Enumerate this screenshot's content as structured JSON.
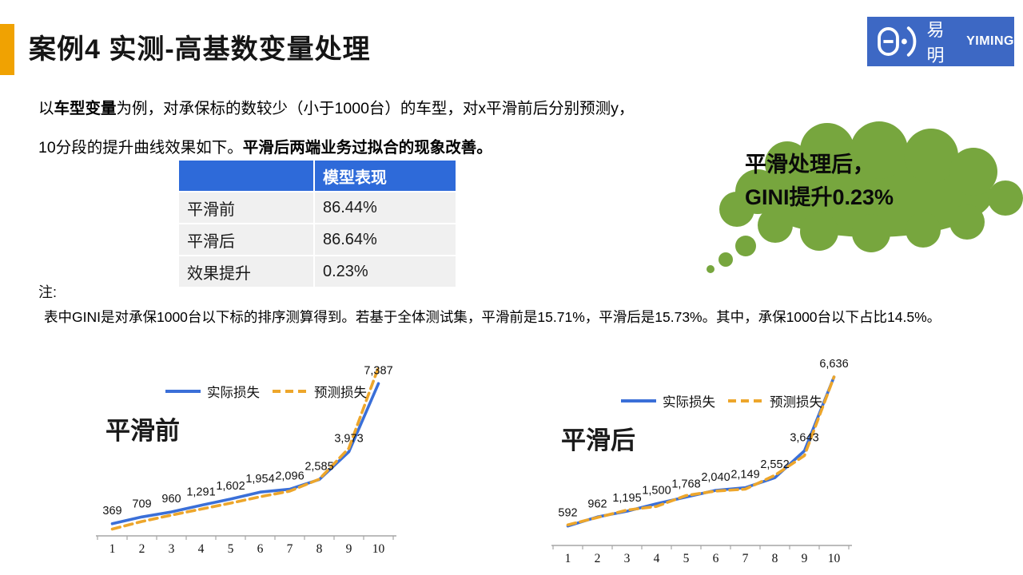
{
  "slide": {
    "title": "案例4 实测-高基数变量处理",
    "logo": {
      "cn": "易明",
      "en": "YIMING",
      "icon": "yiming-face-icon"
    },
    "intro": {
      "pre": "以",
      "bold1": "车型变量",
      "rest1": "为例，对承保标的数较少（小于1000台）的车型，对x平滑前后分别预测y，",
      "normal2": "10分段的提升曲线效果如下。",
      "bold2": "平滑后两端业务过拟合的现象改善。"
    },
    "note_label": "注:",
    "note_text": "表中GINI是对承保1000台以下标的排序测算得到。若基于全体测试集，平滑前是15.71%，平滑后是15.73%。其中，承保1000台以下占比14.5%。",
    "callout": {
      "line1": "平滑处理后，",
      "line2": "GINI提升0.23%"
    }
  },
  "table": {
    "header": {
      "col1": "",
      "col2": "模型表现"
    },
    "rows": [
      {
        "label": "平滑前",
        "value": "86.44%"
      },
      {
        "label": "平滑后",
        "value": "86.64%"
      },
      {
        "label": "效果提升",
        "value": "0.23%"
      }
    ]
  },
  "colors": {
    "accent_orange": "#F0A202",
    "logo_blue": "#3D68C4",
    "table_header_blue": "#2E6AD9",
    "row_gray": "#F0F0F0",
    "cloud_green": "#77A63E",
    "line_blue": "#3A6FD8",
    "line_orange": "#EDA62B",
    "axis_gray": "#A6A6A6"
  },
  "chart_data": [
    {
      "type": "line",
      "title": "平滑前",
      "categories": [
        "1",
        "2",
        "3",
        "4",
        "5",
        "6",
        "7",
        "8",
        "9",
        "10"
      ],
      "xlabel": "",
      "ylabel": "",
      "grid": false,
      "legend_position": "top",
      "series": [
        {
          "name": "实际损失",
          "style": "solid",
          "color": "#3A6FD8",
          "labeled": true,
          "values": [
            369,
            709,
            960,
            1291,
            1602,
            1954,
            2096,
            2585,
            3973,
            7387
          ]
        },
        {
          "name": "预测损失",
          "style": "dashed",
          "color": "#EDA62B",
          "labeled": false,
          "values_estimated": true,
          "values": [
            100,
            480,
            800,
            1100,
            1400,
            1720,
            2000,
            2600,
            4150,
            8200
          ]
        }
      ]
    },
    {
      "type": "line",
      "title": "平滑后",
      "categories": [
        "1",
        "2",
        "3",
        "4",
        "5",
        "6",
        "7",
        "8",
        "9",
        "10"
      ],
      "xlabel": "",
      "ylabel": "",
      "grid": false,
      "legend_position": "top",
      "series": [
        {
          "name": "实际损失",
          "style": "solid",
          "color": "#3A6FD8",
          "labeled": true,
          "values": [
            592,
            962,
            1195,
            1500,
            1768,
            2040,
            2149,
            2552,
            3643,
            6636
          ]
        },
        {
          "name": "预测损失",
          "style": "dashed",
          "color": "#EDA62B",
          "labeled": false,
          "values_estimated": true,
          "values": [
            640,
            940,
            1240,
            1390,
            1830,
            2010,
            2090,
            2650,
            3450,
            6640
          ]
        }
      ]
    }
  ]
}
